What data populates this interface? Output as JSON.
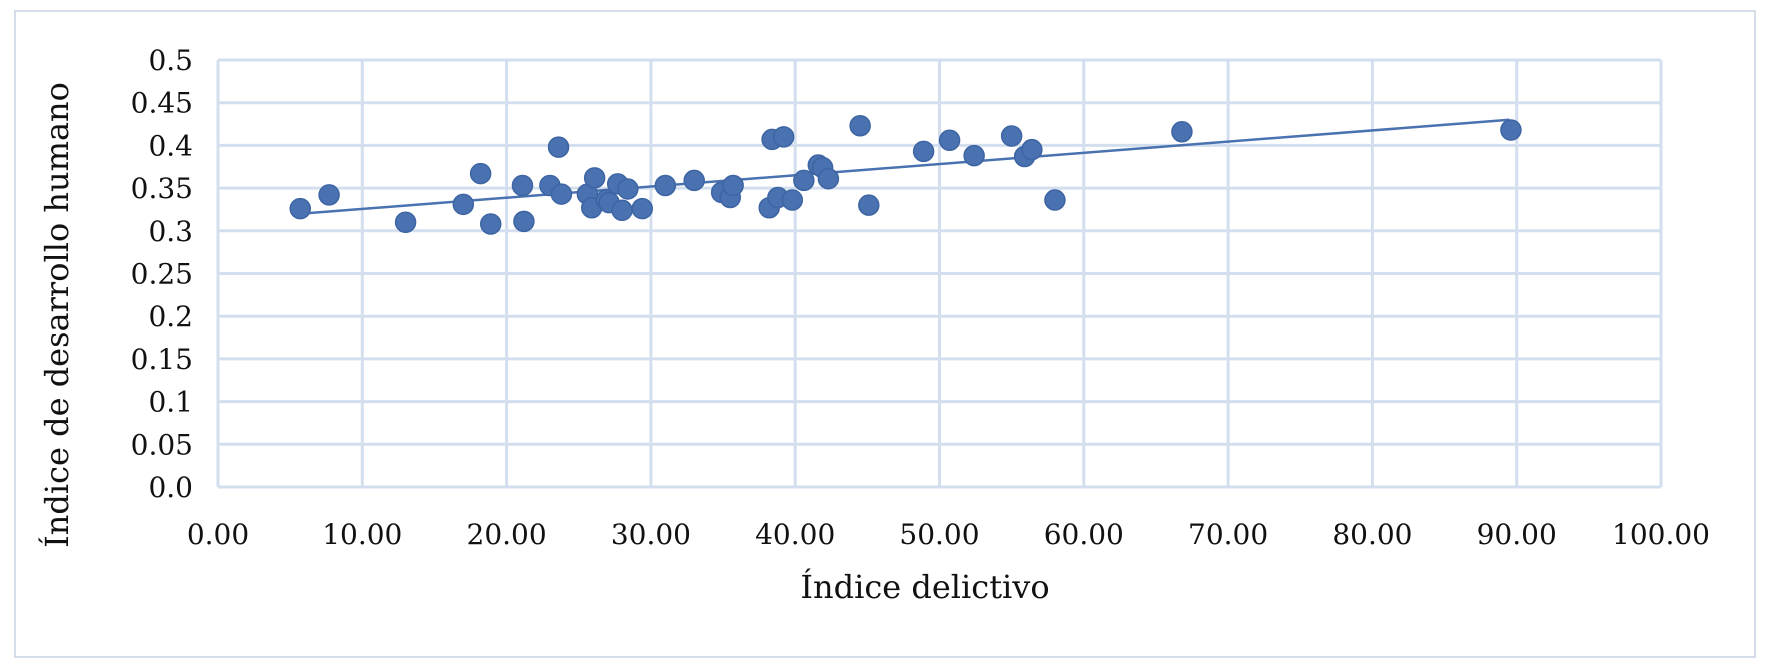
{
  "chart_data": {
    "type": "scatter",
    "title": "",
    "xlabel": "Índice delictivo",
    "ylabel": "Índice de desarrollo humano",
    "xlim": [
      0,
      100
    ],
    "ylim": [
      0,
      0.5
    ],
    "x_ticks": [
      "0.00",
      "10.00",
      "20.00",
      "30.00",
      "40.00",
      "50.00",
      "60.00",
      "70.00",
      "80.00",
      "90.00",
      "100.00"
    ],
    "y_ticks": [
      "0.0",
      "0.05",
      "0.1",
      "0.15",
      "0.2",
      "0.25",
      "0.3",
      "0.35",
      "0.4",
      "0.45",
      "0.5"
    ],
    "grid": true,
    "legend": false,
    "marker_color": "#4a72b0",
    "trendline": {
      "type": "linear",
      "x": [
        5.7,
        89.5
      ],
      "y": [
        0.32,
        0.43
      ],
      "color": "#4a72b0"
    },
    "points": [
      {
        "x": 5.7,
        "y": 0.326
      },
      {
        "x": 7.7,
        "y": 0.342
      },
      {
        "x": 13.0,
        "y": 0.31
      },
      {
        "x": 17.0,
        "y": 0.331
      },
      {
        "x": 18.2,
        "y": 0.367
      },
      {
        "x": 18.9,
        "y": 0.308
      },
      {
        "x": 21.1,
        "y": 0.353
      },
      {
        "x": 21.2,
        "y": 0.311
      },
      {
        "x": 23.0,
        "y": 0.353
      },
      {
        "x": 23.6,
        "y": 0.398
      },
      {
        "x": 23.8,
        "y": 0.343
      },
      {
        "x": 25.6,
        "y": 0.343
      },
      {
        "x": 25.9,
        "y": 0.327
      },
      {
        "x": 26.1,
        "y": 0.362
      },
      {
        "x": 26.9,
        "y": 0.336
      },
      {
        "x": 27.1,
        "y": 0.333
      },
      {
        "x": 27.7,
        "y": 0.355
      },
      {
        "x": 28.0,
        "y": 0.324
      },
      {
        "x": 28.4,
        "y": 0.349
      },
      {
        "x": 29.4,
        "y": 0.326
      },
      {
        "x": 31.0,
        "y": 0.353
      },
      {
        "x": 33.0,
        "y": 0.359
      },
      {
        "x": 34.9,
        "y": 0.345
      },
      {
        "x": 35.5,
        "y": 0.339
      },
      {
        "x": 35.7,
        "y": 0.353
      },
      {
        "x": 38.2,
        "y": 0.327
      },
      {
        "x": 38.4,
        "y": 0.407
      },
      {
        "x": 38.8,
        "y": 0.339
      },
      {
        "x": 39.2,
        "y": 0.41
      },
      {
        "x": 39.8,
        "y": 0.336
      },
      {
        "x": 40.6,
        "y": 0.359
      },
      {
        "x": 41.6,
        "y": 0.377
      },
      {
        "x": 41.9,
        "y": 0.374
      },
      {
        "x": 42.3,
        "y": 0.361
      },
      {
        "x": 44.5,
        "y": 0.423
      },
      {
        "x": 45.1,
        "y": 0.33
      },
      {
        "x": 48.9,
        "y": 0.393
      },
      {
        "x": 50.7,
        "y": 0.406
      },
      {
        "x": 52.4,
        "y": 0.388
      },
      {
        "x": 55.0,
        "y": 0.411
      },
      {
        "x": 55.9,
        "y": 0.387
      },
      {
        "x": 56.4,
        "y": 0.395
      },
      {
        "x": 58.0,
        "y": 0.336
      },
      {
        "x": 66.8,
        "y": 0.416
      },
      {
        "x": 89.6,
        "y": 0.418
      }
    ]
  }
}
